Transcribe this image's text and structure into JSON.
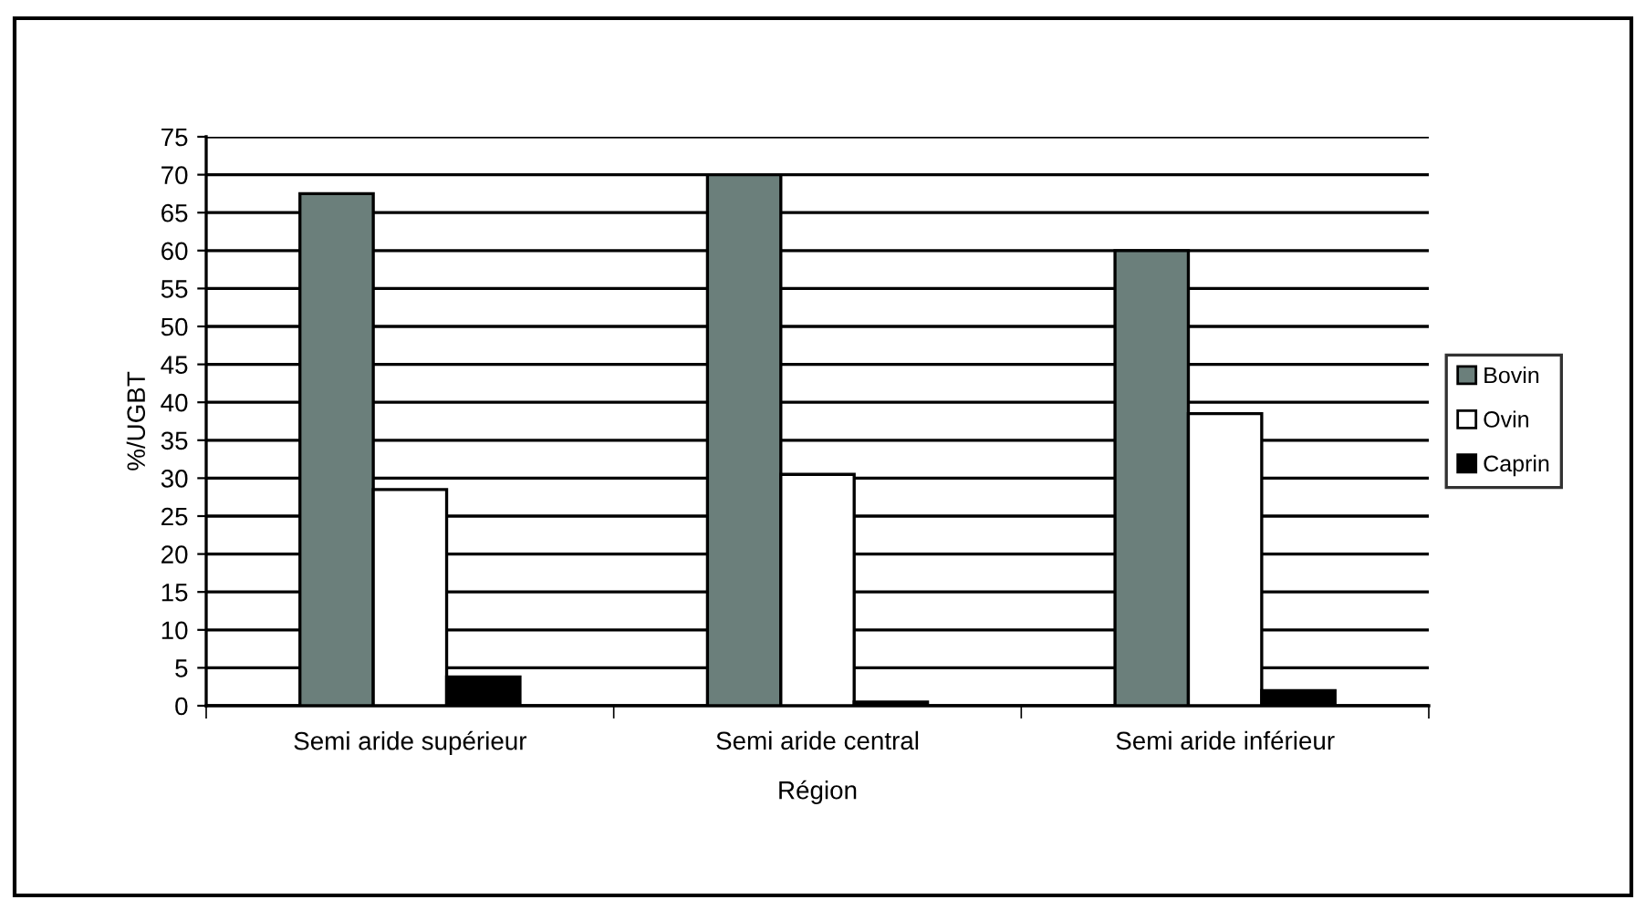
{
  "chart_data": {
    "type": "bar",
    "xlabel": "Région",
    "ylabel": "%/UGBT",
    "categories": [
      "Semi aride supérieur",
      "Semi aride central",
      "Semi aride inférieur"
    ],
    "series": [
      {
        "name": "Bovin",
        "color": "#6b7f7b",
        "values": [
          67.5,
          70,
          60
        ]
      },
      {
        "name": "Ovin",
        "color": "#ffffff",
        "values": [
          28.5,
          30.5,
          38.5
        ]
      },
      {
        "name": "Caprin",
        "color": "#000000",
        "values": [
          3.8,
          0.5,
          2
        ]
      }
    ],
    "ylim": [
      0,
      75
    ],
    "yticks": [
      0,
      5,
      10,
      15,
      20,
      25,
      30,
      35,
      40,
      45,
      50,
      55,
      60,
      65,
      70,
      75
    ],
    "grid": "y",
    "legend": "right"
  }
}
